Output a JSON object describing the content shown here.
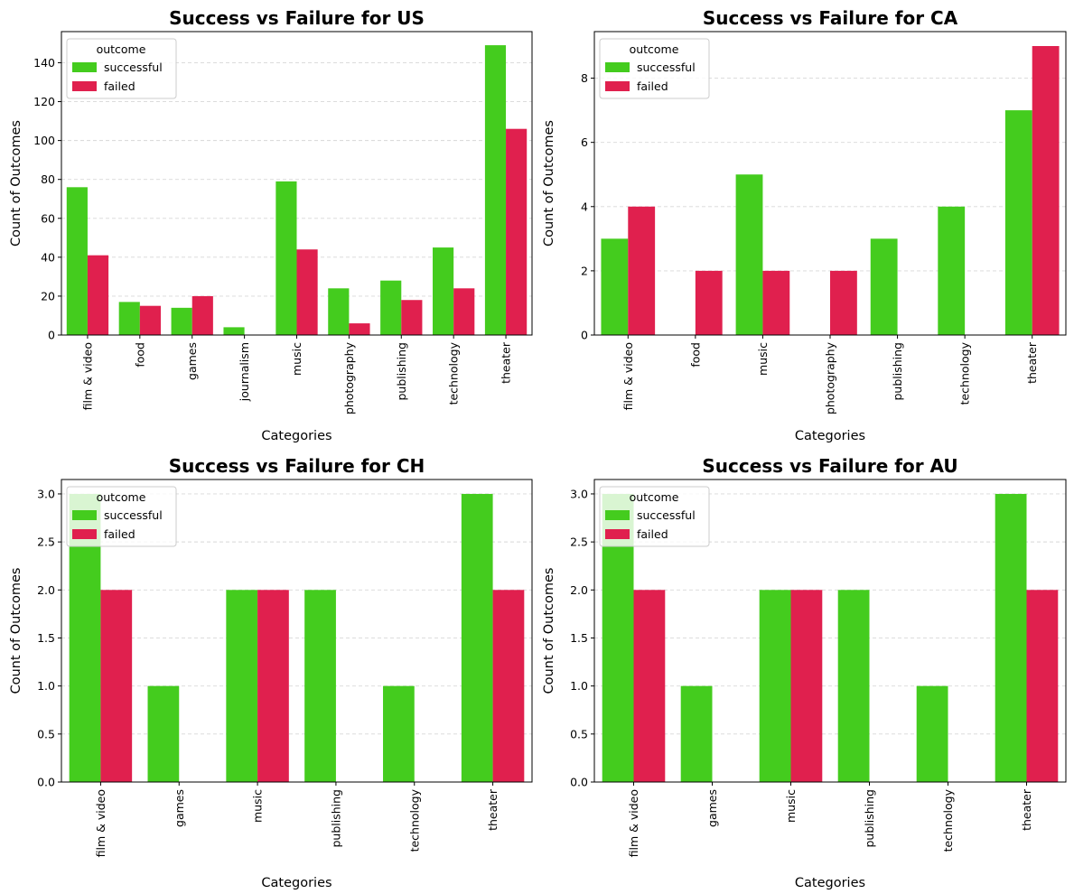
{
  "figure": {
    "background": "#ffffff"
  },
  "colors": {
    "successful": "#44cc1e",
    "failed": "#e0204e",
    "grid": "#d8d8d8"
  },
  "chart_data": [
    {
      "type": "bar",
      "title": "Success vs Failure for US",
      "xlabel": "Categories",
      "ylabel": "Count of Outcomes",
      "ylim": [
        0,
        156
      ],
      "yticks": [
        0,
        20,
        40,
        60,
        80,
        100,
        120,
        140
      ],
      "legend": {
        "title": "outcome",
        "placement": "top-left"
      },
      "grid": "y-dashed",
      "categories": [
        "film & video",
        "food",
        "games",
        "journalism",
        "music",
        "photography",
        "publishing",
        "technology",
        "theater"
      ],
      "series": [
        {
          "name": "successful",
          "values": [
            76,
            17,
            14,
            4,
            79,
            24,
            28,
            45,
            149
          ]
        },
        {
          "name": "failed",
          "values": [
            41,
            15,
            20,
            0,
            44,
            6,
            18,
            24,
            106
          ]
        }
      ]
    },
    {
      "type": "bar",
      "title": "Success vs Failure for CA",
      "xlabel": "Categories",
      "ylabel": "Count of Outcomes",
      "ylim": [
        0,
        9.45
      ],
      "yticks": [
        0,
        2,
        4,
        6,
        8
      ],
      "legend": {
        "title": "outcome",
        "placement": "top-left"
      },
      "grid": "y-dashed",
      "categories": [
        "film & video",
        "food",
        "music",
        "photography",
        "publishing",
        "technology",
        "theater"
      ],
      "series": [
        {
          "name": "successful",
          "values": [
            3,
            0,
            5,
            0,
            3,
            4,
            7
          ]
        },
        {
          "name": "failed",
          "values": [
            4,
            2,
            2,
            2,
            0,
            0,
            9
          ]
        }
      ]
    },
    {
      "type": "bar",
      "title": "Success vs Failure for CH",
      "xlabel": "Categories",
      "ylabel": "Count of Outcomes",
      "ylim": [
        0,
        3.15
      ],
      "yticks": [
        "0.0",
        "0.5",
        "1.0",
        "1.5",
        "2.0",
        "2.5",
        "3.0"
      ],
      "legend": {
        "title": "outcome",
        "placement": "top-left"
      },
      "grid": "y-dashed",
      "categories": [
        "film & video",
        "games",
        "music",
        "publishing",
        "technology",
        "theater"
      ],
      "series": [
        {
          "name": "successful",
          "values": [
            3,
            1,
            2,
            2,
            1,
            3
          ]
        },
        {
          "name": "failed",
          "values": [
            2,
            0,
            2,
            0,
            0,
            2
          ]
        }
      ]
    },
    {
      "type": "bar",
      "title": "Success vs Failure for AU",
      "xlabel": "Categories",
      "ylabel": "Count of Outcomes",
      "ylim": [
        0,
        3.15
      ],
      "yticks": [
        "0.0",
        "0.5",
        "1.0",
        "1.5",
        "2.0",
        "2.5",
        "3.0"
      ],
      "legend": {
        "title": "outcome",
        "placement": "top-left"
      },
      "grid": "y-dashed",
      "categories": [
        "film & video",
        "games",
        "music",
        "publishing",
        "technology",
        "theater"
      ],
      "series": [
        {
          "name": "successful",
          "values": [
            3,
            1,
            2,
            2,
            1,
            3
          ]
        },
        {
          "name": "failed",
          "values": [
            2,
            0,
            2,
            0,
            0,
            2
          ]
        }
      ]
    }
  ]
}
